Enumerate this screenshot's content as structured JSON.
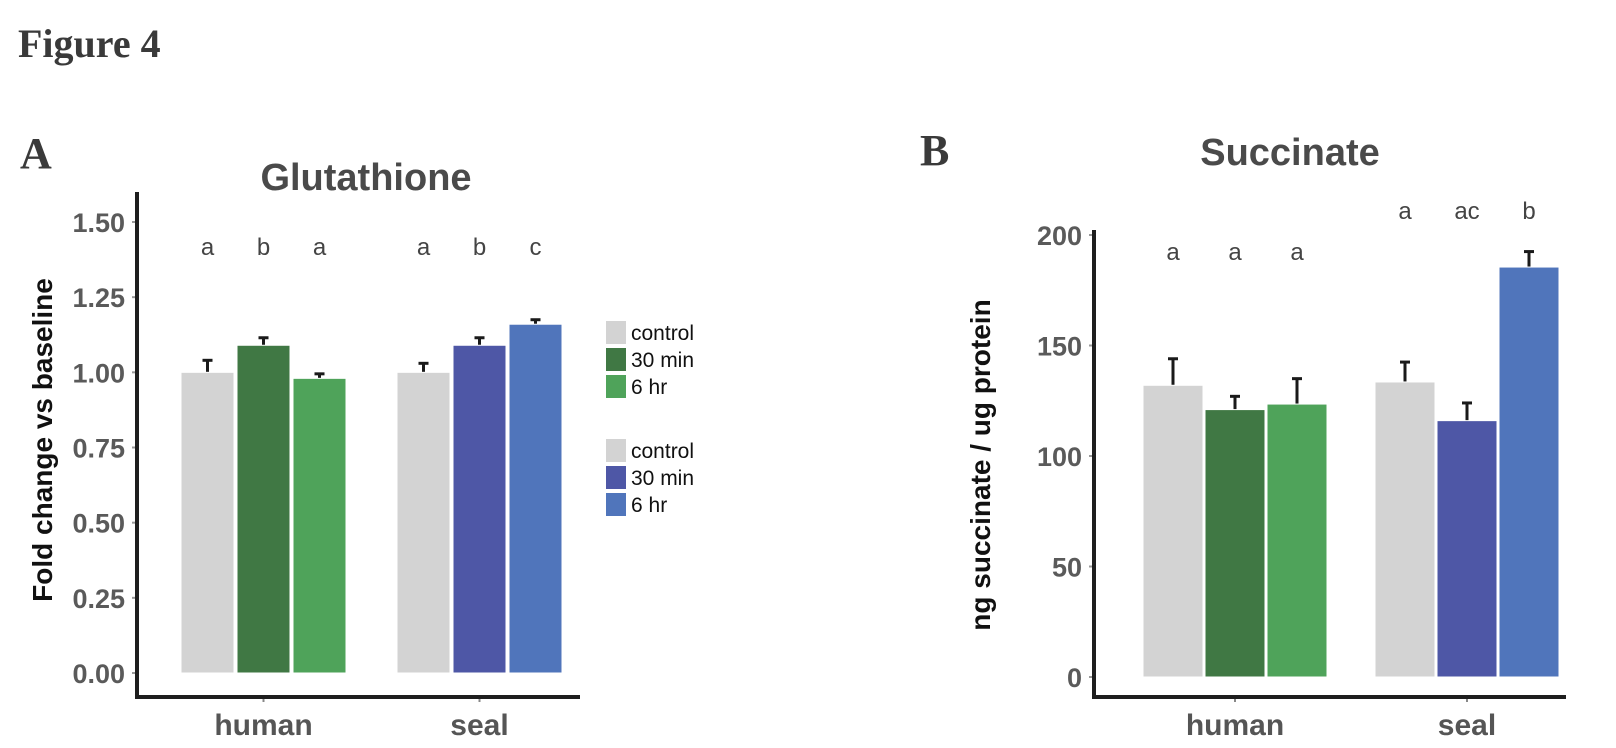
{
  "figure_title": "Figure 4",
  "chart_data": [
    {
      "panel": "A",
      "type": "bar",
      "title": "Glutathione",
      "xlabel": "",
      "ylabel": "Fold change vs baseline",
      "ylim": [
        0,
        1.5
      ],
      "yticks": [
        "0.00",
        "0.25",
        "0.50",
        "0.75",
        "1.00",
        "1.25",
        "1.50"
      ],
      "categories": [
        "human",
        "seal"
      ],
      "series_labels": [
        "control",
        "30 min",
        "6 hr"
      ],
      "groups": [
        {
          "category": "human",
          "bars": [
            {
              "name": "control",
              "value": 1.0,
              "error": 0.04,
              "sig": "a",
              "color": "#d3d3d3"
            },
            {
              "name": "30 min",
              "value": 1.09,
              "error": 0.025,
              "sig": "b",
              "color": "#407844"
            },
            {
              "name": "6 hr",
              "value": 0.98,
              "error": 0.015,
              "sig": "a",
              "color": "#4fa35a"
            }
          ]
        },
        {
          "category": "seal",
          "bars": [
            {
              "name": "control",
              "value": 1.0,
              "error": 0.03,
              "sig": "a",
              "color": "#d3d3d3"
            },
            {
              "name": "30 min",
              "value": 1.09,
              "error": 0.025,
              "sig": "b",
              "color": "#4e57a6"
            },
            {
              "name": "6 hr",
              "value": 1.16,
              "error": 0.015,
              "sig": "c",
              "color": "#5075bb"
            }
          ]
        }
      ],
      "legend": [
        {
          "label": "control",
          "color": "#d3d3d3"
        },
        {
          "label": "30 min",
          "color": "#407844"
        },
        {
          "label": "6 hr",
          "color": "#4fa35a"
        },
        {
          "label": "control",
          "color": "#d3d3d3"
        },
        {
          "label": "30 min",
          "color": "#4e57a6"
        },
        {
          "label": "6 hr",
          "color": "#5075bb"
        }
      ],
      "legend_position": "right"
    },
    {
      "panel": "B",
      "type": "bar",
      "title": "Succinate",
      "xlabel": "",
      "ylabel": "ng succinate / ug protein",
      "ylim": [
        0,
        200
      ],
      "yticks": [
        "0",
        "50",
        "100",
        "150",
        "200"
      ],
      "categories": [
        "human",
        "seal"
      ],
      "groups": [
        {
          "category": "human",
          "bars": [
            {
              "name": "control",
              "value": 132,
              "error": 12,
              "sig": "a",
              "color": "#d3d3d3"
            },
            {
              "name": "30 min",
              "value": 121,
              "error": 6,
              "sig": "a",
              "color": "#407844"
            },
            {
              "name": "6 hr",
              "value": 123.5,
              "error": 11.5,
              "sig": "a",
              "color": "#4fa35a"
            }
          ]
        },
        {
          "category": "seal",
          "bars": [
            {
              "name": "control",
              "value": 133.5,
              "error": 9,
              "sig": "a",
              "color": "#d3d3d3"
            },
            {
              "name": "30 min",
              "value": 116,
              "error": 8,
              "sig": "ac",
              "color": "#4e57a6"
            },
            {
              "name": "6 hr",
              "value": 185.5,
              "error": 7,
              "sig": "b",
              "color": "#5075bb"
            }
          ]
        }
      ]
    }
  ]
}
